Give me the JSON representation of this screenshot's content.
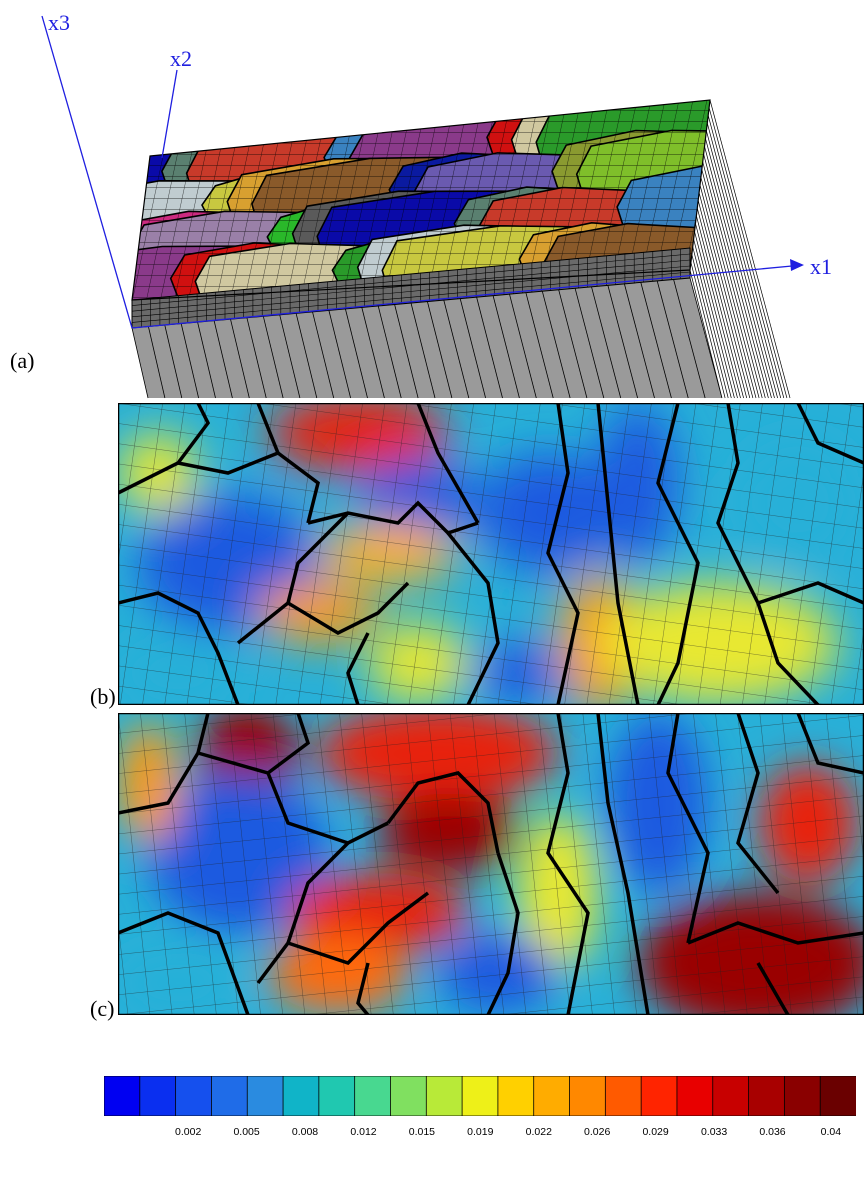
{
  "axes": {
    "x1": "x1",
    "x2": "x2",
    "x3": "x3"
  },
  "panels": {
    "a": "(a)",
    "b": "(b)",
    "c": "(c)"
  },
  "colorbar": {
    "colors": [
      "#0000f2",
      "#0a2ff0",
      "#1550ee",
      "#1f6ce8",
      "#2a8be0",
      "#10b4c8",
      "#20c8b0",
      "#48d890",
      "#80e060",
      "#b8ea38",
      "#eef018",
      "#ffd000",
      "#ffac00",
      "#ff8800",
      "#ff5a00",
      "#ff2400",
      "#e80000",
      "#c80000",
      "#a80000",
      "#8a0000",
      "#6a0000"
    ],
    "ticks": [
      "0.002",
      "0.005",
      "0.008",
      "0.012",
      "0.015",
      "0.019",
      "0.022",
      "0.026",
      "0.029",
      "0.033",
      "0.036",
      "0.04"
    ]
  },
  "grain_colors": [
    "#0a0aa8",
    "#2a9a2a",
    "#8a9a30",
    "#5a8070",
    "#c0ccd0",
    "#7fbf2a",
    "#c83a2a",
    "#c8c840",
    "#cc2a80",
    "#3a82c0",
    "#d8a030",
    "#9a80a8",
    "#8a3a8a",
    "#8a5a2a",
    "#2ab82a",
    "#d01010",
    "#0a1aa0",
    "#5a5a5a",
    "#d0c8a0",
    "#6a5ab0"
  ],
  "field_colors": {
    "blue": "#1a5ae0",
    "cyan": "#28b0d8",
    "green": "#60d878",
    "yellow": "#e8e830",
    "orange": "#ff9a10",
    "red": "#e82010",
    "darkred": "#9a0000"
  }
}
